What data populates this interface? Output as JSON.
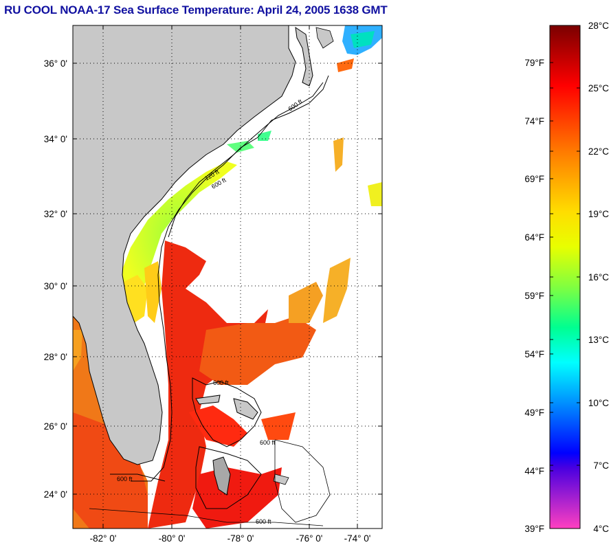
{
  "title": "RU COOL  NOAA-17  Sea Surface Temperature:  April 24, 2005 1638 GMT",
  "map": {
    "lat_ticks": [
      "36° 0'",
      "34° 0'",
      "32° 0'",
      "30° 0'",
      "28° 0'",
      "26° 0'",
      "24° 0'"
    ],
    "lon_ticks": [
      "-82° 0'",
      "-80° 0'",
      "-78° 0'",
      "-76° 0'",
      "-74° 0'"
    ],
    "contour_labels": [
      "600 ft",
      "120 ft",
      "600 ft",
      "600 ft",
      "600 ft",
      "600 ft",
      "600 ft"
    ],
    "colors": {
      "land": "#c8c8c8",
      "cloud": "#ffffff"
    }
  },
  "colorbar": {
    "fahrenheit_ticks": [
      "79°F",
      "74°F",
      "69°F",
      "64°F",
      "59°F",
      "54°F",
      "49°F",
      "44°F",
      "39°F"
    ],
    "celsius_ticks": [
      "28°C",
      "25°C",
      "22°C",
      "19°C",
      "16°C",
      "13°C",
      "10°C",
      "7°C",
      "4°C"
    ],
    "gradient": [
      "#8b0000",
      "#ff0000",
      "#ff7f00",
      "#ffff00",
      "#00ff7f",
      "#00ffff",
      "#0080ff",
      "#0000ff",
      "#ff00ff"
    ]
  }
}
